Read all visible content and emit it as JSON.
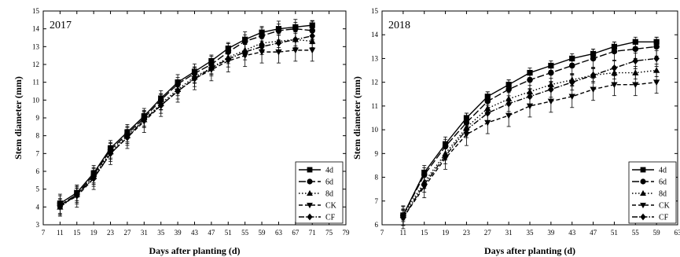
{
  "chart_data": [
    {
      "type": "line",
      "title": "2017",
      "xlabel": "Days after planting (d)",
      "ylabel": "Stem diameter (mm)",
      "xlim": [
        7,
        79
      ],
      "ylim": [
        3,
        15
      ],
      "xticks": [
        7,
        11,
        15,
        19,
        23,
        27,
        31,
        35,
        39,
        43,
        47,
        51,
        55,
        59,
        63,
        67,
        71,
        75,
        79
      ],
      "yticks": [
        3,
        4,
        5,
        6,
        7,
        8,
        9,
        10,
        11,
        12,
        13,
        14,
        15
      ],
      "legend_position": "bottom-right",
      "grid": false,
      "x": [
        11,
        15,
        19,
        23,
        27,
        31,
        35,
        39,
        43,
        47,
        51,
        55,
        59,
        63,
        67,
        71
      ],
      "series": [
        {
          "name": "4d",
          "marker": "square",
          "dash": "solid",
          "values": [
            4.2,
            4.8,
            5.9,
            7.3,
            8.2,
            9.1,
            10.1,
            11.0,
            11.6,
            12.2,
            12.9,
            13.4,
            13.8,
            14.0,
            14.1,
            14.2
          ]
        },
        {
          "name": "6d",
          "marker": "circle",
          "dash": "longdash",
          "values": [
            4.1,
            4.7,
            5.8,
            7.2,
            8.1,
            9.0,
            10.0,
            10.9,
            11.5,
            12.0,
            12.7,
            13.3,
            13.6,
            13.9,
            14.0,
            13.9
          ]
        },
        {
          "name": "8d",
          "marker": "triangle-up",
          "dash": "dot",
          "values": [
            4.0,
            4.7,
            5.7,
            7.1,
            8.0,
            8.9,
            9.8,
            10.6,
            11.3,
            11.8,
            12.4,
            12.8,
            13.2,
            13.3,
            13.4,
            13.3
          ]
        },
        {
          "name": "CK",
          "marker": "triangle-down",
          "dash": "dash",
          "values": [
            4.1,
            4.6,
            5.6,
            7.0,
            7.9,
            8.8,
            9.7,
            10.5,
            11.2,
            11.7,
            12.2,
            12.5,
            12.7,
            12.7,
            12.8,
            12.8
          ]
        },
        {
          "name": "CF",
          "marker": "diamond",
          "dash": "dashdot",
          "values": [
            4.0,
            4.7,
            5.6,
            7.0,
            7.9,
            8.9,
            9.7,
            10.5,
            11.2,
            11.8,
            12.3,
            12.7,
            13.0,
            13.2,
            13.4,
            13.6
          ]
        }
      ]
    },
    {
      "type": "line",
      "title": "2018",
      "xlabel": "Days after planting (d)",
      "ylabel": "Stem diameter (mm)",
      "xlim": [
        7,
        63
      ],
      "ylim": [
        6,
        15
      ],
      "xticks": [
        7,
        11,
        15,
        19,
        23,
        27,
        31,
        35,
        39,
        43,
        47,
        51,
        55,
        59,
        63
      ],
      "yticks": [
        6,
        7,
        8,
        9,
        10,
        11,
        12,
        13,
        14,
        15
      ],
      "legend_position": "bottom-right",
      "grid": false,
      "x": [
        11,
        15,
        19,
        23,
        27,
        31,
        35,
        39,
        43,
        47,
        51,
        55,
        59
      ],
      "series": [
        {
          "name": "4d",
          "marker": "square",
          "dash": "solid",
          "values": [
            6.4,
            8.2,
            9.4,
            10.5,
            11.4,
            11.9,
            12.4,
            12.7,
            13.0,
            13.2,
            13.5,
            13.7,
            13.7
          ]
        },
        {
          "name": "6d",
          "marker": "circle",
          "dash": "longdash",
          "values": [
            6.4,
            8.1,
            9.3,
            10.3,
            11.2,
            11.7,
            12.1,
            12.4,
            12.7,
            13.0,
            13.3,
            13.4,
            13.5
          ]
        },
        {
          "name": "8d",
          "marker": "triangle-up",
          "dash": "dot",
          "values": [
            6.4,
            7.8,
            9.0,
            10.1,
            10.9,
            11.3,
            11.6,
            11.9,
            12.1,
            12.3,
            12.4,
            12.4,
            12.5
          ]
        },
        {
          "name": "CK",
          "marker": "triangle-down",
          "dash": "dash",
          "values": [
            6.3,
            7.6,
            8.8,
            9.8,
            10.3,
            10.6,
            11.0,
            11.2,
            11.4,
            11.7,
            11.9,
            11.9,
            12.0
          ]
        },
        {
          "name": "CF",
          "marker": "diamond",
          "dash": "dashdot",
          "values": [
            6.3,
            7.7,
            8.9,
            10.0,
            10.7,
            11.1,
            11.4,
            11.7,
            12.0,
            12.3,
            12.6,
            12.9,
            13.0
          ]
        }
      ]
    }
  ]
}
